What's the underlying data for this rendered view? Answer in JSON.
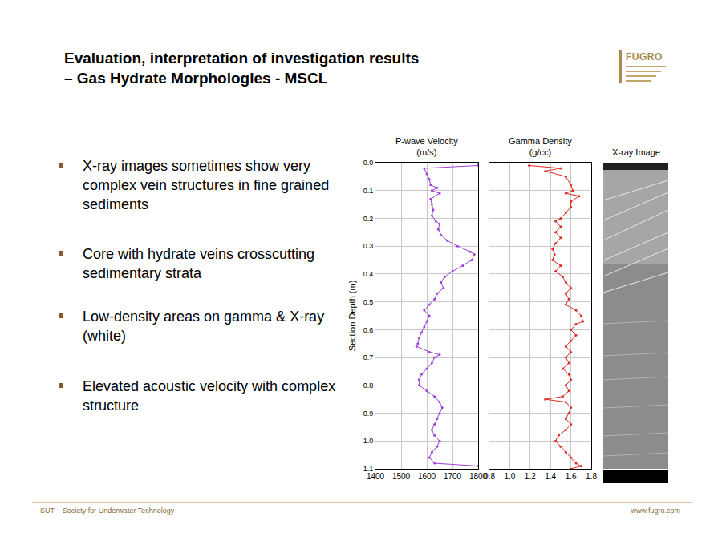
{
  "slide": {
    "title": [
      "Evaluation, interpretation of investigation results",
      "– Gas Hydrate Morphologies - MSCL"
    ],
    "logo": "FUGRO",
    "bullets": [
      "X-ray images sometimes show very complex vein structures in fine grained sediments",
      "Core with hydrate veins crosscutting sedimentary strata",
      "Low-density areas on gamma & X-ray (white)",
      "Elevated acoustic velocity with complex structure"
    ],
    "image_title": "X-ray Image",
    "footer_left": "SUT – Society for Underwater Technology",
    "footer_right": "www.fugro.com"
  },
  "chart_data": [
    {
      "type": "line",
      "title": "P-wave Velocity",
      "subtitle": "(m/s)",
      "ylabel": "Section Depth (m)",
      "color": "#a040d8",
      "marker": "circle",
      "line_style": "solid",
      "grid": true,
      "xlim": [
        1400,
        1800
      ],
      "xticks": [
        1400,
        1500,
        1600,
        1700,
        1800
      ],
      "ylim": [
        1.1,
        0
      ],
      "yticks": [
        {
          "value": 0,
          "label": "0.0"
        },
        0.1,
        0.2,
        0.3,
        0.4,
        0.5,
        0.6,
        0.7,
        0.8,
        0.9,
        {
          "value": 1,
          "label": "1.0"
        },
        1.1
      ],
      "y": [
        0.0,
        0.01,
        0.02,
        0.04,
        0.06,
        0.08,
        0.09,
        0.1,
        0.11,
        0.13,
        0.15,
        0.17,
        0.19,
        0.21,
        0.22,
        0.24,
        0.26,
        0.28,
        0.3,
        0.32,
        0.33,
        0.35,
        0.37,
        0.39,
        0.41,
        0.43,
        0.45,
        0.47,
        0.49,
        0.51,
        0.53,
        0.55,
        0.57,
        0.59,
        0.61,
        0.63,
        0.65,
        0.66,
        0.68,
        0.69,
        0.7,
        0.72,
        0.74,
        0.76,
        0.78,
        0.8,
        0.82,
        0.84,
        0.86,
        0.88,
        0.9,
        0.92,
        0.94,
        0.96,
        0.98,
        1.0,
        1.02,
        1.04,
        1.06,
        1.08,
        1.09
      ],
      "x": [
        1800,
        1800,
        1590,
        1600,
        1610,
        1615,
        1640,
        1620,
        1650,
        1615,
        1620,
        1625,
        1620,
        1635,
        1650,
        1645,
        1655,
        1680,
        1720,
        1770,
        1785,
        1775,
        1740,
        1700,
        1670,
        1655,
        1665,
        1640,
        1630,
        1610,
        1590,
        1610,
        1600,
        1590,
        1580,
        1570,
        1565,
        1560,
        1610,
        1650,
        1630,
        1620,
        1600,
        1580,
        1570,
        1570,
        1600,
        1630,
        1650,
        1660,
        1650,
        1640,
        1630,
        1620,
        1630,
        1650,
        1640,
        1620,
        1610,
        1630,
        1800
      ]
    },
    {
      "type": "line",
      "title": "Gamma Density",
      "subtitle": "(g/cc)",
      "color": "#e02a20",
      "marker": "circle",
      "line_style": "solid",
      "grid": true,
      "tick_labels": "x",
      "xlim": [
        0.8,
        1.8
      ],
      "xticks": [
        0.8,
        {
          "value": 1,
          "label": "1.0"
        },
        1.2,
        1.4,
        1.6,
        1.8
      ],
      "ylim": [
        1.1,
        0
      ],
      "yticks": [
        0,
        0.1,
        0.2,
        0.3,
        0.4,
        0.5,
        0.6,
        0.7,
        0.8,
        0.9,
        1,
        1.1
      ],
      "y": [
        0.01,
        0.02,
        0.03,
        0.05,
        0.08,
        0.1,
        0.11,
        0.12,
        0.14,
        0.16,
        0.18,
        0.2,
        0.21,
        0.23,
        0.25,
        0.27,
        0.29,
        0.31,
        0.33,
        0.35,
        0.37,
        0.39,
        0.41,
        0.43,
        0.45,
        0.47,
        0.49,
        0.51,
        0.53,
        0.55,
        0.57,
        0.58,
        0.6,
        0.62,
        0.64,
        0.66,
        0.68,
        0.7,
        0.72,
        0.74,
        0.76,
        0.78,
        0.8,
        0.82,
        0.84,
        0.85,
        0.86,
        0.88,
        0.9,
        0.92,
        0.94,
        0.96,
        0.98,
        1.0,
        1.02,
        1.04,
        1.06,
        1.08,
        1.09,
        1.1
      ],
      "x": [
        1.19,
        1.5,
        1.35,
        1.55,
        1.6,
        1.62,
        1.55,
        1.68,
        1.6,
        1.6,
        1.55,
        1.5,
        1.45,
        1.5,
        1.45,
        1.5,
        1.45,
        1.42,
        1.44,
        1.42,
        1.5,
        1.45,
        1.52,
        1.55,
        1.6,
        1.55,
        1.58,
        1.55,
        1.65,
        1.7,
        1.72,
        1.65,
        1.6,
        1.65,
        1.6,
        1.55,
        1.6,
        1.55,
        1.58,
        1.52,
        1.58,
        1.6,
        1.55,
        1.58,
        1.52,
        1.35,
        1.55,
        1.6,
        1.58,
        1.55,
        1.6,
        1.55,
        1.48,
        1.45,
        1.5,
        1.55,
        1.6,
        1.65,
        1.7,
        1.6
      ]
    }
  ]
}
